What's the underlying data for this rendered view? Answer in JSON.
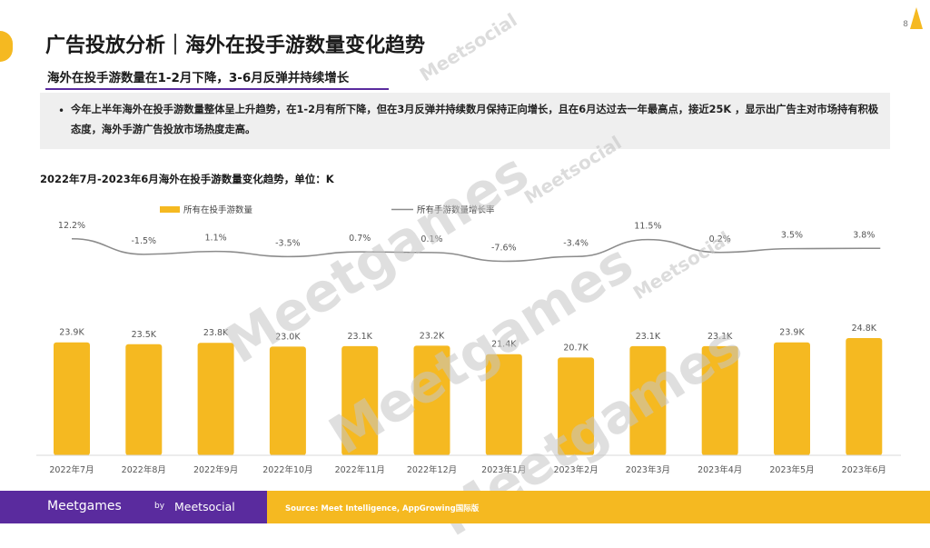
{
  "header": {
    "title": "广告投放分析｜海外在投手游数量变化趋势",
    "page_number": "8",
    "subtitle": "海外在投手游数量在1-2月下降，3-6月反弹并持续增长"
  },
  "note": {
    "bullet": "•",
    "text": "今年上半年海外在投手游数量整体呈上升趋势，在1-2月有所下降，但在3月反弹并持续数月保持正向增长，且在6月达过去一年最高点，接近25K ，显示出广告主对市场持有积极态度，海外手游广告投放市场热度走高。"
  },
  "chart_heading": "2022年7月-2023年6月海外在投手游数量变化趋势，单位：K",
  "chart_data": {
    "type": "bar",
    "categories": [
      "2022年7月",
      "2022年8月",
      "2022年9月",
      "2022年10月",
      "2022年11月",
      "2022年12月",
      "2023年1月",
      "2023年2月",
      "2023年3月",
      "2023年4月",
      "2023年5月",
      "2023年6月"
    ],
    "series": [
      {
        "name": "所有在投手游数量",
        "type": "bar",
        "values": [
          23.9,
          23.5,
          23.8,
          23.0,
          23.1,
          23.2,
          21.4,
          20.7,
          23.1,
          23.1,
          23.9,
          24.8
        ],
        "labels": [
          "23.9K",
          "23.5K",
          "23.8K",
          "23.0K",
          "23.1K",
          "23.2K",
          "21.4K",
          "20.7K",
          "23.1K",
          "23.1K",
          "23.9K",
          "24.8K"
        ]
      },
      {
        "name": "所有手游数量增长率",
        "type": "line",
        "values": [
          12.2,
          -1.5,
          1.1,
          -3.5,
          0.7,
          0.1,
          -7.6,
          -3.4,
          11.5,
          0.2,
          3.5,
          3.8
        ],
        "labels": [
          "12.2%",
          "-1.5%",
          "1.1%",
          "-3.5%",
          "0.7%",
          "0.1%",
          "-7.6%",
          "-3.4%",
          "11.5%",
          "0.2%",
          "3.5%",
          "3.8%"
        ]
      }
    ],
    "legend_position": "top-left",
    "grid": false,
    "colors": {
      "bar": "#f5b921",
      "line": "#8c8c8c"
    }
  },
  "footer": {
    "brand_meetgames": "Meetgames",
    "brand_by": "by",
    "brand_meetsocial": "Meetsocial",
    "source": "Source: Meet Intelligence, AppGrowing国际版"
  },
  "watermark": {
    "text": "Meetgames",
    "by": "by",
    "meetsocial": "Meetsocial"
  },
  "colors": {
    "brand_yellow": "#f5b921",
    "brand_purple": "#5a2b9e"
  }
}
